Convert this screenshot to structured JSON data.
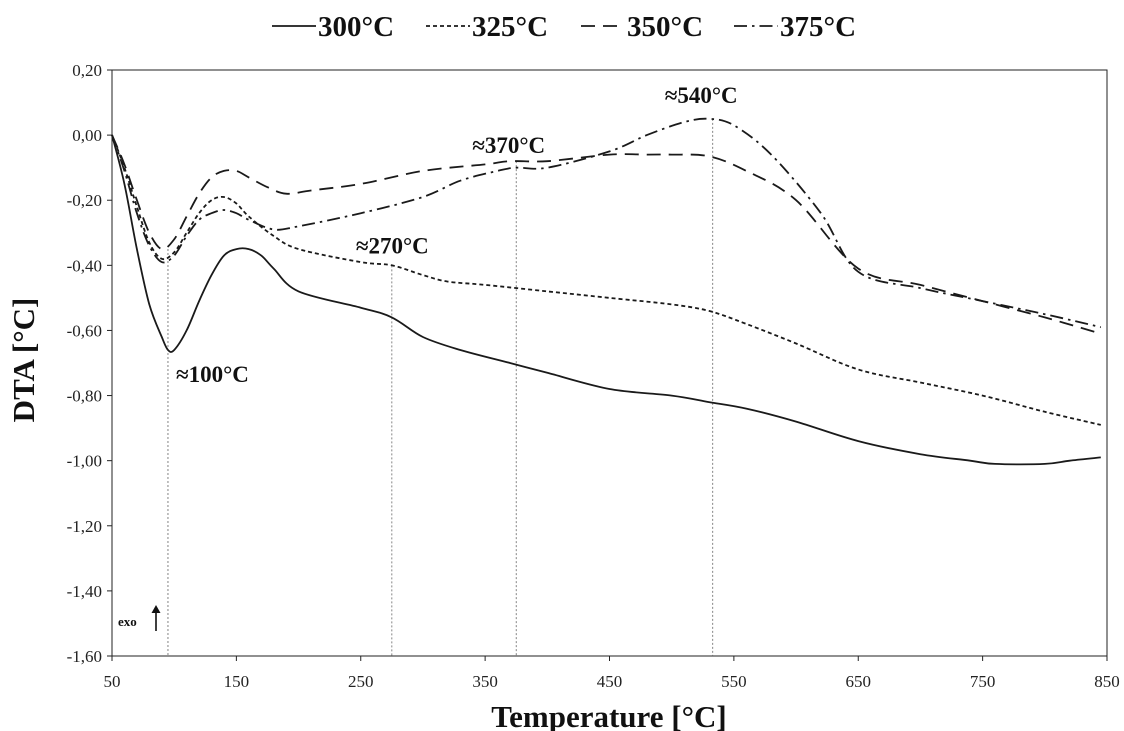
{
  "chart_data": {
    "type": "line",
    "xlabel": "Temperature [°C]",
    "ylabel": "DTA [°C]",
    "xlim": [
      50,
      850
    ],
    "ylim": [
      -1.6,
      0.2
    ],
    "x_ticks": [
      "50",
      "150",
      "250",
      "350",
      "450",
      "550",
      "650",
      "750",
      "850"
    ],
    "y_ticks": [
      "0,20",
      "0,00",
      "-0,20",
      "-0,40",
      "-0,60",
      "-0,80",
      "-1,00",
      "-1,20",
      "-1,40",
      "-1,60"
    ],
    "grid": false,
    "legend_position": "top",
    "series": [
      {
        "name": "300°C",
        "dash": "solid",
        "x": [
          50,
          60,
          70,
          80,
          90,
          95,
          100,
          110,
          120,
          130,
          140,
          150,
          160,
          170,
          180,
          200,
          250,
          275,
          300,
          330,
          370,
          400,
          450,
          500,
          530,
          560,
          600,
          650,
          700,
          740,
          760,
          800,
          820,
          845
        ],
        "y": [
          0.0,
          -0.15,
          -0.35,
          -0.52,
          -0.62,
          -0.66,
          -0.66,
          -0.6,
          -0.51,
          -0.43,
          -0.37,
          -0.35,
          -0.35,
          -0.37,
          -0.41,
          -0.48,
          -0.53,
          -0.56,
          -0.62,
          -0.66,
          -0.7,
          -0.73,
          -0.78,
          -0.8,
          -0.82,
          -0.84,
          -0.88,
          -0.94,
          -0.98,
          -1.0,
          -1.01,
          -1.01,
          -1.0,
          -0.99
        ]
      },
      {
        "name": "325°C",
        "dash": "short-dash",
        "x": [
          50,
          60,
          70,
          80,
          90,
          100,
          110,
          120,
          130,
          140,
          150,
          160,
          180,
          200,
          250,
          275,
          300,
          320,
          350,
          400,
          450,
          500,
          530,
          560,
          600,
          650,
          700,
          750,
          800,
          845
        ],
        "y": [
          0.0,
          -0.1,
          -0.22,
          -0.33,
          -0.38,
          -0.36,
          -0.3,
          -0.24,
          -0.2,
          -0.19,
          -0.21,
          -0.25,
          -0.31,
          -0.35,
          -0.39,
          -0.4,
          -0.43,
          -0.45,
          -0.46,
          -0.48,
          -0.5,
          -0.52,
          -0.54,
          -0.58,
          -0.64,
          -0.72,
          -0.76,
          -0.8,
          -0.85,
          -0.89
        ]
      },
      {
        "name": "350°C",
        "dash": "long-dash",
        "x": [
          50,
          60,
          70,
          80,
          90,
          100,
          110,
          120,
          130,
          140,
          150,
          160,
          175,
          190,
          210,
          250,
          300,
          350,
          370,
          400,
          450,
          480,
          500,
          530,
          560,
          600,
          650,
          700,
          750,
          800,
          845
        ],
        "y": [
          0.0,
          -0.09,
          -0.2,
          -0.3,
          -0.35,
          -0.32,
          -0.25,
          -0.18,
          -0.13,
          -0.11,
          -0.11,
          -0.13,
          -0.16,
          -0.18,
          -0.17,
          -0.15,
          -0.11,
          -0.09,
          -0.08,
          -0.08,
          -0.06,
          -0.06,
          -0.06,
          -0.065,
          -0.11,
          -0.2,
          -0.41,
          -0.46,
          -0.51,
          -0.56,
          -0.61
        ]
      },
      {
        "name": "375°C",
        "dash": "dash-dot",
        "x": [
          50,
          60,
          70,
          80,
          90,
          100,
          110,
          120,
          130,
          140,
          150,
          160,
          180,
          200,
          250,
          300,
          330,
          360,
          375,
          400,
          450,
          480,
          510,
          530,
          550,
          580,
          620,
          650,
          700,
          750,
          800,
          845
        ],
        "y": [
          0.0,
          -0.11,
          -0.24,
          -0.34,
          -0.39,
          -0.37,
          -0.31,
          -0.26,
          -0.24,
          -0.23,
          -0.24,
          -0.26,
          -0.29,
          -0.28,
          -0.24,
          -0.19,
          -0.14,
          -0.11,
          -0.1,
          -0.1,
          -0.05,
          0.0,
          0.04,
          0.05,
          0.03,
          -0.06,
          -0.24,
          -0.42,
          -0.47,
          -0.51,
          -0.55,
          -0.59
        ]
      }
    ],
    "annotations": [
      {
        "text": "≈100°C",
        "x": 95,
        "y": -0.66,
        "line_from_y": -0.35
      },
      {
        "text": "≈270°C",
        "x": 275,
        "y": -0.4
      },
      {
        "text": "≈370°C",
        "x": 375,
        "y": -0.08
      },
      {
        "text": "≈540°C",
        "x": 533,
        "y": 0.05
      }
    ],
    "exo_label": "exo"
  }
}
